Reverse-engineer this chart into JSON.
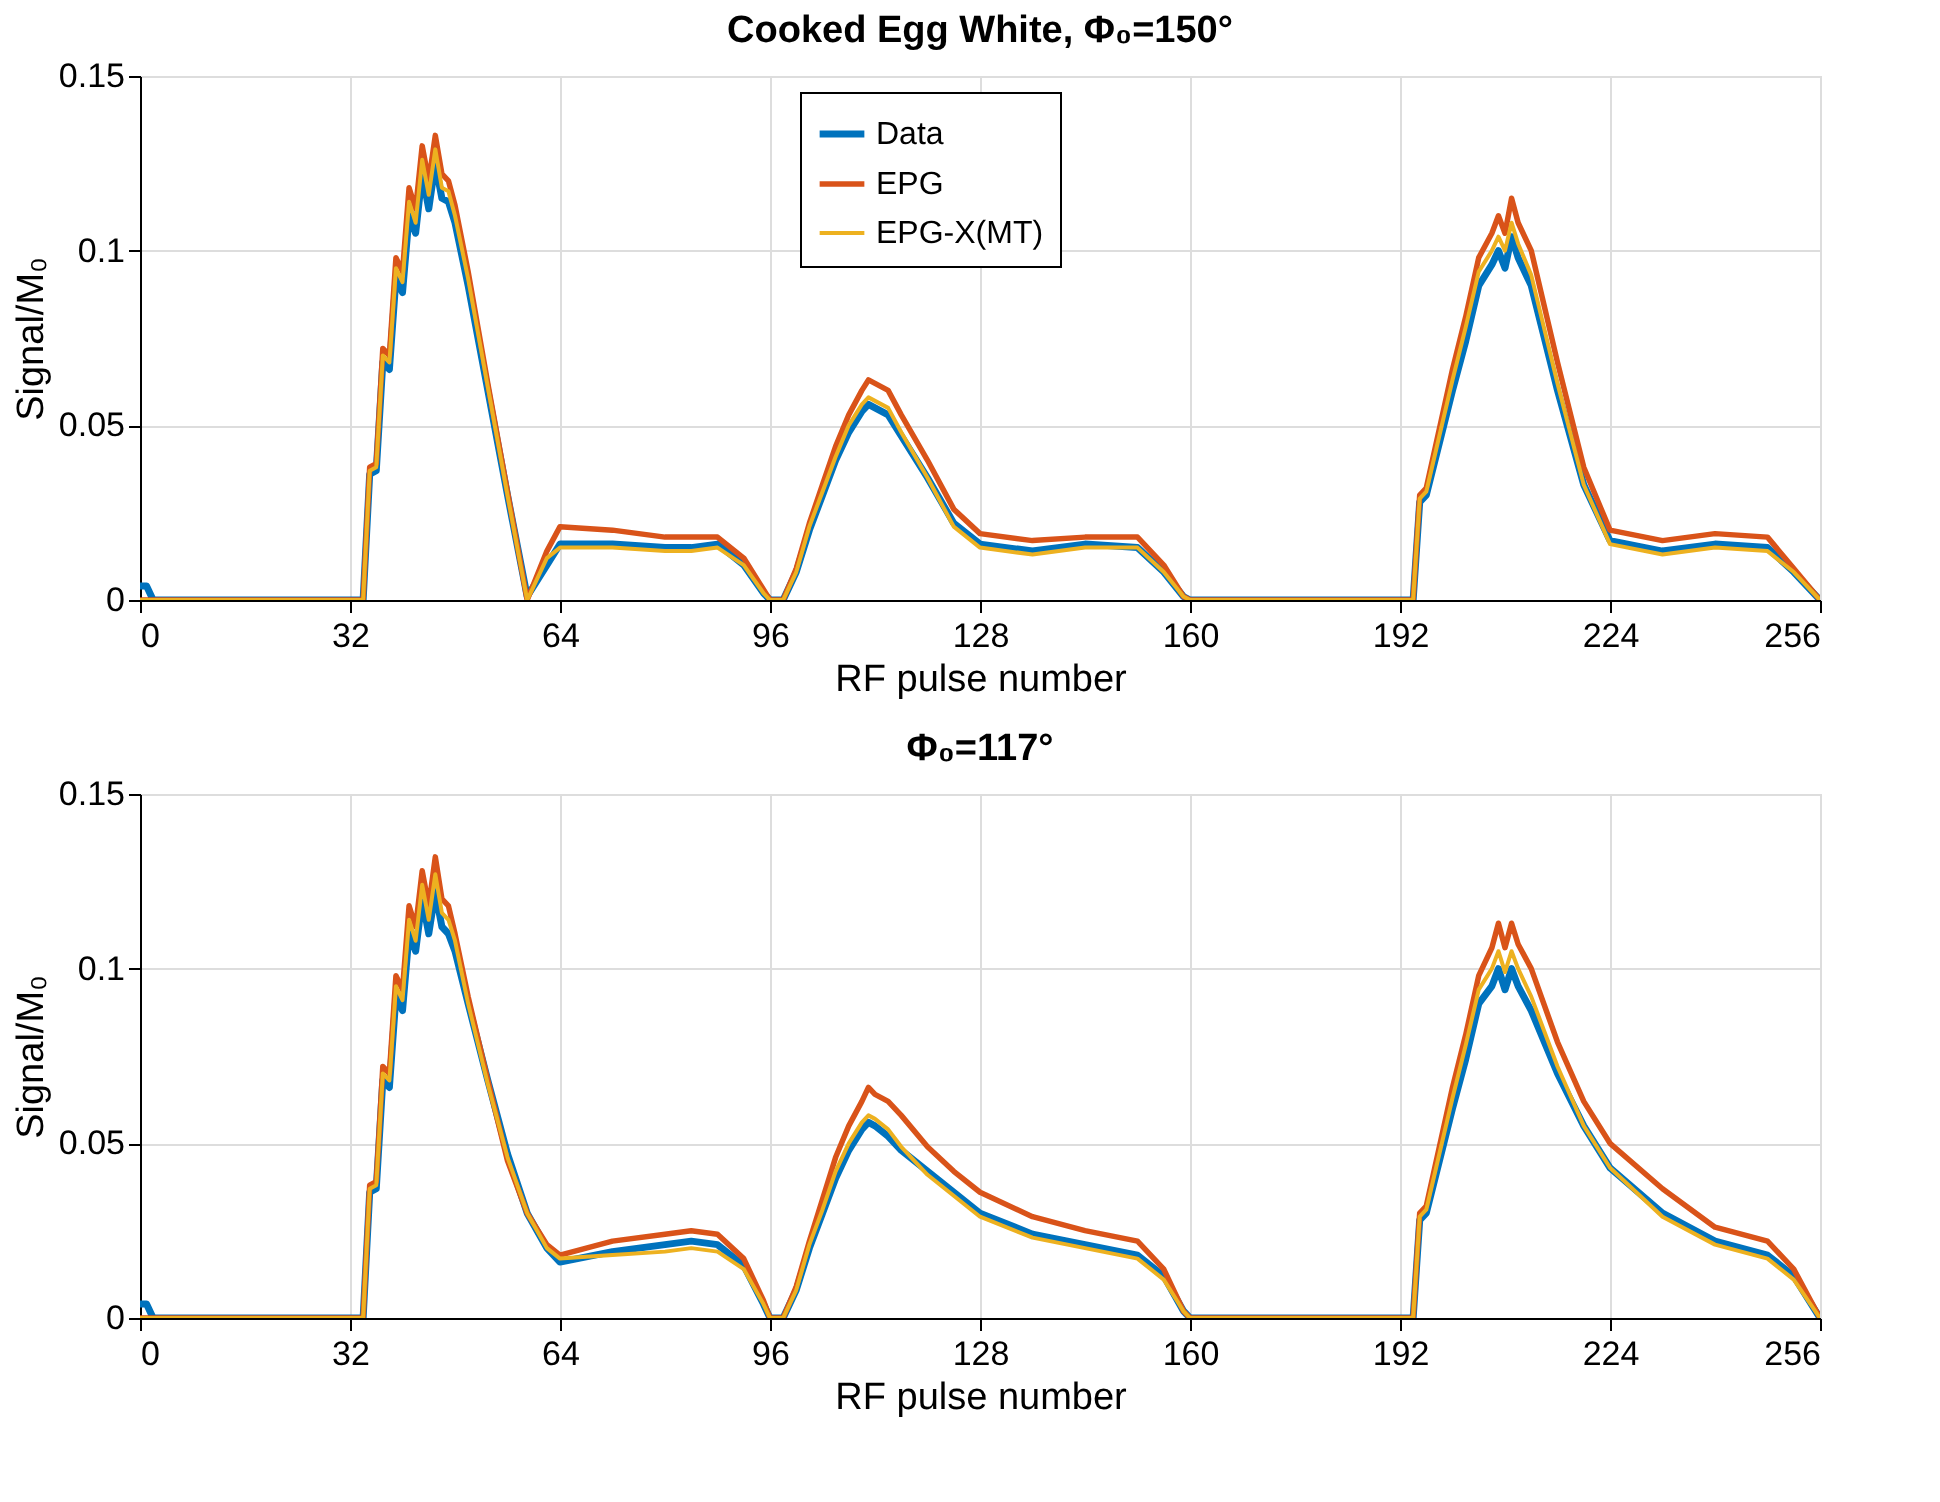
{
  "chart_data": [
    {
      "type": "line",
      "title": "Cooked Egg White, Φ₀=150°",
      "xlabel": "RF pulse number",
      "ylabel": "Signal/M₀",
      "x": [
        0,
        1,
        2,
        16,
        32,
        34,
        35,
        36,
        37,
        38,
        39,
        40,
        41,
        42,
        43,
        44,
        45,
        46,
        47,
        48,
        50,
        53,
        56,
        59,
        62,
        64,
        72,
        80,
        84,
        88,
        92,
        95,
        96,
        98,
        100,
        102,
        104,
        106,
        108,
        110,
        111,
        112,
        114,
        116,
        120,
        124,
        128,
        136,
        144,
        152,
        156,
        159,
        160,
        176,
        192,
        194,
        195,
        196,
        198,
        200,
        202,
        204,
        206,
        207,
        208,
        209,
        210,
        212,
        216,
        220,
        224,
        232,
        240,
        248,
        252,
        256
      ],
      "series": [
        {
          "name": "Data",
          "color": "#0072bd",
          "values": [
            0.004,
            0.004,
            0,
            0,
            0,
            0,
            0.036,
            0.037,
            0.068,
            0.066,
            0.092,
            0.088,
            0.11,
            0.105,
            0.122,
            0.112,
            0.125,
            0.115,
            0.114,
            0.108,
            0.09,
            0.06,
            0.03,
            0.001,
            0.01,
            0.016,
            0.016,
            0.015,
            0.015,
            0.016,
            0.01,
            0.002,
            0,
            0,
            0.008,
            0.02,
            0.03,
            0.04,
            0.048,
            0.054,
            0.056,
            0.055,
            0.053,
            0.047,
            0.035,
            0.022,
            0.016,
            0.014,
            0.016,
            0.015,
            0.008,
            0.001,
            0,
            0,
            0,
            0,
            0.028,
            0.03,
            0.045,
            0.06,
            0.074,
            0.09,
            0.096,
            0.1,
            0.095,
            0.104,
            0.098,
            0.09,
            0.06,
            0.033,
            0.017,
            0.014,
            0.016,
            0.015,
            0.008,
            0
          ]
        },
        {
          "name": "EPG",
          "color": "#d95319",
          "values": [
            0,
            0,
            0,
            0,
            0,
            0,
            0.038,
            0.039,
            0.072,
            0.07,
            0.098,
            0.094,
            0.118,
            0.112,
            0.13,
            0.12,
            0.133,
            0.122,
            0.12,
            0.113,
            0.094,
            0.062,
            0.031,
            0,
            0.014,
            0.021,
            0.02,
            0.018,
            0.018,
            0.018,
            0.012,
            0.003,
            0,
            0,
            0.009,
            0.022,
            0.033,
            0.044,
            0.053,
            0.06,
            0.063,
            0.062,
            0.06,
            0.053,
            0.04,
            0.026,
            0.019,
            0.017,
            0.018,
            0.018,
            0.01,
            0.001,
            0,
            0,
            0,
            0,
            0.03,
            0.032,
            0.049,
            0.066,
            0.081,
            0.098,
            0.105,
            0.11,
            0.105,
            0.115,
            0.108,
            0.1,
            0.068,
            0.038,
            0.02,
            0.017,
            0.019,
            0.018,
            0.009,
            0
          ]
        },
        {
          "name": "EPG-X(MT)",
          "color": "#edb120",
          "values": [
            0,
            0,
            0,
            0,
            0,
            0,
            0.037,
            0.038,
            0.07,
            0.068,
            0.095,
            0.091,
            0.114,
            0.108,
            0.126,
            0.116,
            0.129,
            0.118,
            0.117,
            0.11,
            0.092,
            0.061,
            0.03,
            0,
            0.012,
            0.015,
            0.015,
            0.014,
            0.014,
            0.015,
            0.01,
            0.002,
            0,
            0,
            0.008,
            0.021,
            0.031,
            0.041,
            0.05,
            0.056,
            0.058,
            0.057,
            0.055,
            0.048,
            0.035,
            0.021,
            0.015,
            0.013,
            0.015,
            0.015,
            0.008,
            0.001,
            0,
            0,
            0,
            0,
            0.029,
            0.031,
            0.047,
            0.063,
            0.078,
            0.094,
            0.1,
            0.104,
            0.1,
            0.108,
            0.102,
            0.093,
            0.062,
            0.033,
            0.016,
            0.013,
            0.015,
            0.014,
            0.008,
            0
          ]
        }
      ],
      "xlim": [
        0,
        256
      ],
      "xticks": [
        0,
        32,
        64,
        96,
        128,
        160,
        192,
        224,
        256
      ],
      "ylim": [
        0,
        0.15
      ],
      "yticks": [
        0,
        0.05,
        0.1,
        0.15
      ],
      "grid": true,
      "legend": "top",
      "line_style": "solid"
    },
    {
      "type": "line",
      "title": "Φ₀=117°",
      "xlabel": "RF pulse number",
      "ylabel": "Signal/M₀",
      "x": [
        0,
        1,
        2,
        16,
        32,
        34,
        35,
        36,
        37,
        38,
        39,
        40,
        41,
        42,
        43,
        44,
        45,
        46,
        47,
        48,
        50,
        53,
        56,
        59,
        62,
        64,
        72,
        80,
        84,
        88,
        92,
        95,
        96,
        98,
        100,
        102,
        104,
        106,
        108,
        110,
        111,
        112,
        114,
        116,
        120,
        124,
        128,
        136,
        144,
        152,
        156,
        159,
        160,
        176,
        192,
        194,
        195,
        196,
        198,
        200,
        202,
        204,
        206,
        207,
        208,
        209,
        210,
        212,
        216,
        220,
        224,
        232,
        240,
        248,
        252,
        256
      ],
      "series": [
        {
          "name": "Data",
          "color": "#0072bd",
          "values": [
            0.004,
            0.004,
            0,
            0,
            0,
            0,
            0.036,
            0.037,
            0.068,
            0.066,
            0.092,
            0.088,
            0.11,
            0.105,
            0.12,
            0.11,
            0.122,
            0.112,
            0.11,
            0.105,
            0.09,
            0.068,
            0.047,
            0.03,
            0.02,
            0.016,
            0.019,
            0.021,
            0.022,
            0.021,
            0.015,
            0.004,
            0,
            0,
            0.008,
            0.02,
            0.03,
            0.04,
            0.048,
            0.054,
            0.056,
            0.055,
            0.052,
            0.048,
            0.042,
            0.036,
            0.03,
            0.024,
            0.021,
            0.018,
            0.012,
            0.002,
            0,
            0,
            0,
            0,
            0.028,
            0.03,
            0.045,
            0.06,
            0.074,
            0.09,
            0.095,
            0.1,
            0.094,
            0.1,
            0.095,
            0.088,
            0.07,
            0.055,
            0.043,
            0.03,
            0.022,
            0.018,
            0.012,
            0
          ]
        },
        {
          "name": "EPG",
          "color": "#d95319",
          "values": [
            0,
            0,
            0,
            0,
            0,
            0,
            0.038,
            0.039,
            0.072,
            0.07,
            0.098,
            0.094,
            0.118,
            0.112,
            0.128,
            0.118,
            0.132,
            0.12,
            0.118,
            0.11,
            0.092,
            0.068,
            0.045,
            0.03,
            0.021,
            0.018,
            0.022,
            0.024,
            0.025,
            0.024,
            0.017,
            0.005,
            0,
            0,
            0.009,
            0.022,
            0.034,
            0.046,
            0.055,
            0.062,
            0.066,
            0.064,
            0.062,
            0.058,
            0.049,
            0.042,
            0.036,
            0.029,
            0.025,
            0.022,
            0.014,
            0.002,
            0,
            0,
            0,
            0,
            0.03,
            0.032,
            0.049,
            0.066,
            0.081,
            0.098,
            0.106,
            0.113,
            0.106,
            0.113,
            0.107,
            0.1,
            0.079,
            0.062,
            0.05,
            0.037,
            0.026,
            0.022,
            0.014,
            0
          ]
        },
        {
          "name": "EPG-X(MT)",
          "color": "#edb120",
          "values": [
            0,
            0,
            0,
            0,
            0,
            0,
            0.037,
            0.038,
            0.07,
            0.068,
            0.095,
            0.091,
            0.114,
            0.108,
            0.124,
            0.114,
            0.127,
            0.116,
            0.114,
            0.108,
            0.09,
            0.067,
            0.046,
            0.03,
            0.02,
            0.017,
            0.018,
            0.019,
            0.02,
            0.019,
            0.014,
            0.004,
            0,
            0,
            0.008,
            0.021,
            0.031,
            0.042,
            0.05,
            0.056,
            0.058,
            0.057,
            0.054,
            0.049,
            0.041,
            0.035,
            0.029,
            0.023,
            0.02,
            0.017,
            0.011,
            0.002,
            0,
            0,
            0,
            0,
            0.029,
            0.031,
            0.047,
            0.063,
            0.078,
            0.094,
            0.1,
            0.105,
            0.099,
            0.105,
            0.1,
            0.092,
            0.072,
            0.055,
            0.043,
            0.029,
            0.021,
            0.017,
            0.011,
            0
          ]
        }
      ],
      "xlim": [
        0,
        256
      ],
      "xticks": [
        0,
        32,
        64,
        96,
        128,
        160,
        192,
        224,
        256
      ],
      "ylim": [
        0,
        0.15
      ],
      "yticks": [
        0,
        0.05,
        0.1,
        0.15
      ],
      "grid": true,
      "legend": "top",
      "line_style": "solid"
    }
  ]
}
